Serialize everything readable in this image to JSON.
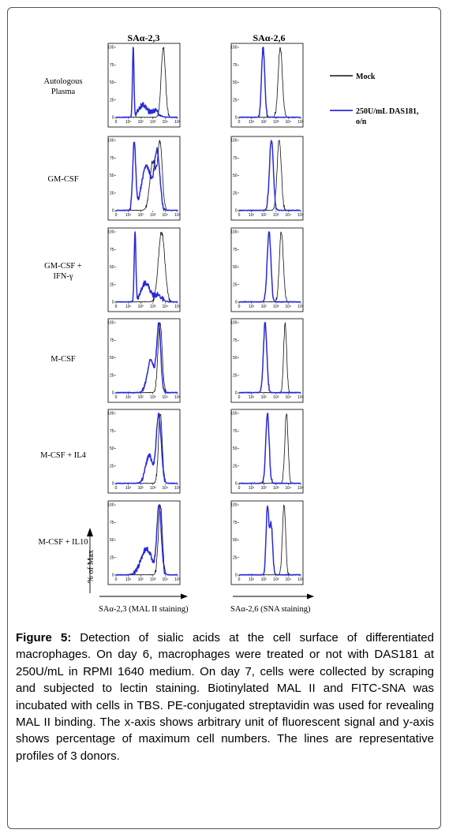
{
  "columns": [
    "SAα-2,3",
    "SAα-2,6"
  ],
  "row_labels": [
    [
      "Autologous",
      "Plasma"
    ],
    [
      "GM-CSF"
    ],
    [
      "GM-CSF +",
      "IFN-γ"
    ],
    [
      "M-CSF"
    ],
    [
      "M-CSF + IL4"
    ],
    [
      "M-CSF + IL10"
    ]
  ],
  "legend": {
    "mock": {
      "label_lines": [
        "Mock"
      ],
      "color": "#111111"
    },
    "treated": {
      "label_lines": [
        "250U/mL DAS181,",
        "o/n"
      ],
      "color": "#2a2ad6"
    }
  },
  "y_axis_label": "% of Max",
  "x_axis_labels": [
    "SAα-2,3 (MAL II staining)",
    "SAα-2,6 (SNA staining)"
  ],
  "caption": {
    "label": "Figure 5:",
    "text": "Detection of sialic acids at the cell surface of differentiated macrophages. On day 6, macrophages were treated or not with DAS181 at 250U/mL in RPMI 1640 medium. On day 7, cells were collected by scraping and subjected to lectin staining. Biotinylated MAL II and FITC-SNA was incubated with cells in TBS. PE-conjugated streptavidin was used for revealing MAL II binding. The x-axis shows arbitrary unit of fluorescent signal and y-axis shows percentage of maximum cell numbers. The lines are representative profiles of 3 donors."
  },
  "chart_data": {
    "type": "line",
    "x_scale": "log",
    "xlim": [
      1,
      100000
    ],
    "ylim": [
      0,
      100
    ],
    "x_ticks": [
      "0",
      "10¹",
      "10²",
      "10³",
      "10⁴",
      "10⁵"
    ],
    "y_ticks": [
      "0",
      "25",
      "50",
      "75",
      "100"
    ],
    "series_names": [
      "Mock",
      "250U/mL DAS181, o/n"
    ],
    "panels": [
      {
        "row": "Autologous Plasma",
        "column": "SAα-2,3",
        "mock": [
          {
            "c": 7000,
            "w": 0.17,
            "h": 100
          }
        ],
        "treated": [
          {
            "c": 25,
            "w": 0.06,
            "h": 100
          },
          {
            "c": 150,
            "w": 0.35,
            "h": 18
          },
          {
            "c": 1500,
            "w": 0.3,
            "h": 10
          }
        ]
      },
      {
        "row": "Autologous Plasma",
        "column": "SAα-2,6",
        "mock": [
          {
            "c": 2200,
            "w": 0.17,
            "h": 100
          }
        ],
        "treated": [
          {
            "c": 90,
            "w": 0.13,
            "h": 100
          }
        ]
      },
      {
        "row": "GM-CSF",
        "column": "SAα-2,3",
        "mock": [
          {
            "c": 1000,
            "w": 0.25,
            "h": 75
          },
          {
            "c": 3800,
            "w": 0.18,
            "h": 100
          }
        ],
        "treated": [
          {
            "c": 30,
            "w": 0.12,
            "h": 100
          },
          {
            "c": 300,
            "w": 0.4,
            "h": 65
          },
          {
            "c": 2200,
            "w": 0.22,
            "h": 82
          }
        ]
      },
      {
        "row": "GM-CSF",
        "column": "SAα-2,6",
        "mock": [
          {
            "c": 1800,
            "w": 0.17,
            "h": 100
          }
        ],
        "treated": [
          {
            "c": 420,
            "w": 0.16,
            "h": 100
          }
        ]
      },
      {
        "row": "GM-CSF + IFN-γ",
        "column": "SAα-2,3",
        "mock": [
          {
            "c": 5000,
            "w": 0.26,
            "h": 100
          }
        ],
        "treated": [
          {
            "c": 35,
            "w": 0.07,
            "h": 100
          },
          {
            "c": 250,
            "w": 0.35,
            "h": 28
          },
          {
            "c": 2500,
            "w": 0.3,
            "h": 10
          }
        ]
      },
      {
        "row": "GM-CSF + IFN-γ",
        "column": "SAα-2,6",
        "mock": [
          {
            "c": 2700,
            "w": 0.16,
            "h": 100
          }
        ],
        "treated": [
          {
            "c": 270,
            "w": 0.15,
            "h": 100
          }
        ]
      },
      {
        "row": "M-CSF",
        "column": "SAα-2,3",
        "mock": [
          {
            "c": 3800,
            "w": 0.17,
            "h": 100
          }
        ],
        "treated": [
          {
            "c": 3000,
            "w": 0.16,
            "h": 100
          },
          {
            "c": 700,
            "w": 0.3,
            "h": 50
          }
        ]
      },
      {
        "row": "M-CSF",
        "column": "SAα-2,6",
        "mock": [
          {
            "c": 5500,
            "w": 0.12,
            "h": 100
          }
        ],
        "treated": [
          {
            "c": 130,
            "w": 0.14,
            "h": 100
          }
        ]
      },
      {
        "row": "M-CSF + IL4",
        "column": "SAα-2,3",
        "mock": [
          {
            "c": 4000,
            "w": 0.15,
            "h": 100
          }
        ],
        "treated": [
          {
            "c": 3000,
            "w": 0.2,
            "h": 100
          },
          {
            "c": 500,
            "w": 0.3,
            "h": 40
          }
        ]
      },
      {
        "row": "M-CSF + IL4",
        "column": "SAα-2,6",
        "mock": [
          {
            "c": 7000,
            "w": 0.13,
            "h": 100
          }
        ],
        "treated": [
          {
            "c": 200,
            "w": 0.14,
            "h": 100
          }
        ]
      },
      {
        "row": "M-CSF + IL10",
        "column": "SAα-2,3",
        "mock": [
          {
            "c": 4000,
            "w": 0.16,
            "h": 100
          }
        ],
        "treated": [
          {
            "c": 3200,
            "w": 0.18,
            "h": 100
          },
          {
            "c": 300,
            "w": 0.45,
            "h": 38
          }
        ]
      },
      {
        "row": "M-CSF + IL10",
        "column": "SAα-2,6",
        "mock": [
          {
            "c": 4500,
            "w": 0.13,
            "h": 100
          }
        ],
        "treated": [
          {
            "c": 200,
            "w": 0.11,
            "h": 100
          },
          {
            "c": 400,
            "w": 0.12,
            "h": 75
          }
        ]
      }
    ]
  }
}
